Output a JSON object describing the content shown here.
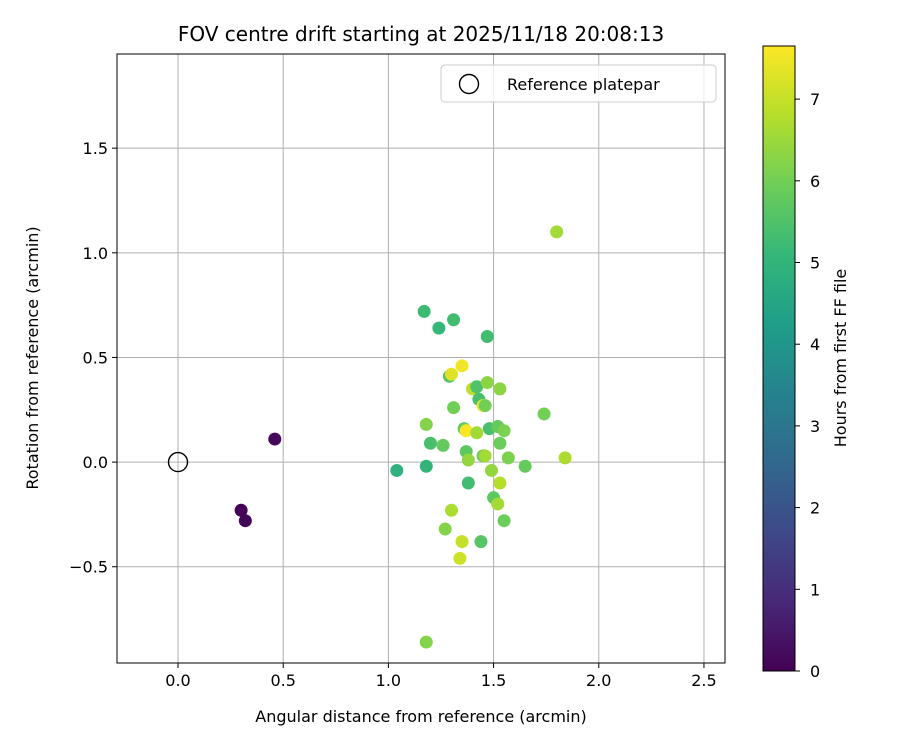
{
  "chart_data": {
    "type": "scatter",
    "title": "FOV centre drift starting at 2025/11/18 20:08:13",
    "xlabel": "Angular distance from reference (arcmin)",
    "ylabel": "Rotation from reference (arcmin)",
    "xlim": [
      -0.29,
      2.6
    ],
    "ylim": [
      -0.96,
      1.95
    ],
    "xticks": [
      0.0,
      0.5,
      1.0,
      1.5,
      2.0,
      2.5
    ],
    "xtick_labels": [
      "0.0",
      "0.5",
      "1.0",
      "1.5",
      "2.0",
      "2.5"
    ],
    "yticks": [
      -0.5,
      0.0,
      0.5,
      1.0,
      1.5
    ],
    "ytick_labels": [
      "−0.5",
      "0.0",
      "0.5",
      "1.0",
      "1.5"
    ],
    "grid": true,
    "legend": {
      "placement": "top-right",
      "label": "Reference platepar"
    },
    "reference": {
      "x": 0.0,
      "y": 0.0
    },
    "colorbar": {
      "label": "Hours from first FF file",
      "range": [
        0,
        7.65
      ],
      "ticks": [
        0,
        1,
        2,
        3,
        4,
        5,
        6,
        7
      ],
      "tick_labels": [
        "0",
        "1",
        "2",
        "3",
        "4",
        "5",
        "6",
        "7"
      ],
      "colormap": "viridis",
      "colors": [
        "#440154",
        "#482878",
        "#3e4989",
        "#31688e",
        "#26828e",
        "#1f9e89",
        "#35b779",
        "#6ece58",
        "#b5de2b",
        "#fde725"
      ]
    },
    "points": [
      {
        "x": 0.3,
        "y": -0.23,
        "hours": 0.05
      },
      {
        "x": 0.32,
        "y": -0.28,
        "hours": 0.1
      },
      {
        "x": 0.46,
        "y": 0.11,
        "hours": 0.15
      },
      {
        "x": 1.04,
        "y": -0.04,
        "hours": 4.9
      },
      {
        "x": 1.17,
        "y": 0.72,
        "hours": 5.2
      },
      {
        "x": 1.18,
        "y": -0.02,
        "hours": 5.0
      },
      {
        "x": 1.18,
        "y": 0.18,
        "hours": 6.2
      },
      {
        "x": 1.2,
        "y": 0.09,
        "hours": 5.4
      },
      {
        "x": 1.18,
        "y": -0.86,
        "hours": 6.2
      },
      {
        "x": 1.24,
        "y": 0.64,
        "hours": 5.1
      },
      {
        "x": 1.26,
        "y": 0.08,
        "hours": 5.8
      },
      {
        "x": 1.27,
        "y": -0.32,
        "hours": 6.2
      },
      {
        "x": 1.29,
        "y": 0.41,
        "hours": 5.6
      },
      {
        "x": 1.3,
        "y": 0.42,
        "hours": 7.3
      },
      {
        "x": 1.3,
        "y": -0.23,
        "hours": 6.7
      },
      {
        "x": 1.31,
        "y": 0.68,
        "hours": 5.3
      },
      {
        "x": 1.31,
        "y": 0.26,
        "hours": 6.0
      },
      {
        "x": 1.34,
        "y": -0.46,
        "hours": 7.1
      },
      {
        "x": 1.35,
        "y": 0.46,
        "hours": 7.5
      },
      {
        "x": 1.35,
        "y": -0.38,
        "hours": 7.0
      },
      {
        "x": 1.36,
        "y": 0.16,
        "hours": 5.8
      },
      {
        "x": 1.37,
        "y": 0.05,
        "hours": 5.7
      },
      {
        "x": 1.37,
        "y": 0.15,
        "hours": 7.6
      },
      {
        "x": 1.38,
        "y": 0.01,
        "hours": 6.4
      },
      {
        "x": 1.38,
        "y": -0.1,
        "hours": 5.3
      },
      {
        "x": 1.4,
        "y": 0.35,
        "hours": 6.9
      },
      {
        "x": 1.42,
        "y": 0.14,
        "hours": 6.6
      },
      {
        "x": 1.42,
        "y": 0.36,
        "hours": 5.5
      },
      {
        "x": 1.43,
        "y": 0.3,
        "hours": 5.4
      },
      {
        "x": 1.44,
        "y": -0.38,
        "hours": 5.6
      },
      {
        "x": 1.45,
        "y": 0.27,
        "hours": 7.5
      },
      {
        "x": 1.45,
        "y": 0.03,
        "hours": 5.8
      },
      {
        "x": 1.46,
        "y": 0.27,
        "hours": 6.0
      },
      {
        "x": 1.46,
        "y": 0.03,
        "hours": 6.6
      },
      {
        "x": 1.47,
        "y": 0.6,
        "hours": 5.3
      },
      {
        "x": 1.47,
        "y": 0.38,
        "hours": 6.3
      },
      {
        "x": 1.48,
        "y": 0.16,
        "hours": 5.4
      },
      {
        "x": 1.49,
        "y": -0.04,
        "hours": 6.4
      },
      {
        "x": 1.5,
        "y": -0.17,
        "hours": 5.7
      },
      {
        "x": 1.52,
        "y": -0.2,
        "hours": 6.6
      },
      {
        "x": 1.52,
        "y": 0.17,
        "hours": 5.8
      },
      {
        "x": 1.53,
        "y": 0.09,
        "hours": 5.9
      },
      {
        "x": 1.53,
        "y": -0.1,
        "hours": 6.8
      },
      {
        "x": 1.53,
        "y": 0.35,
        "hours": 6.3
      },
      {
        "x": 1.55,
        "y": 0.15,
        "hours": 6.1
      },
      {
        "x": 1.55,
        "y": -0.28,
        "hours": 5.9
      },
      {
        "x": 1.57,
        "y": 0.02,
        "hours": 6.1
      },
      {
        "x": 1.65,
        "y": -0.02,
        "hours": 5.8
      },
      {
        "x": 1.74,
        "y": 0.23,
        "hours": 6.0
      },
      {
        "x": 1.8,
        "y": 1.1,
        "hours": 6.6
      },
      {
        "x": 1.84,
        "y": 0.02,
        "hours": 6.7
      }
    ]
  }
}
